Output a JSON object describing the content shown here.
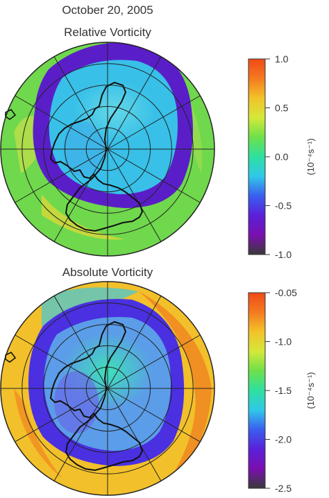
{
  "date": "October 20, 2005",
  "panels": [
    {
      "title": "Relative Vorticity",
      "colorbar": {
        "ticks": [
          "1.0",
          "0.5",
          "0.0",
          "-0.5",
          "-1.0"
        ],
        "range": [
          -1.0,
          1.0
        ],
        "unit": "(10⁻⁴s⁻¹)"
      },
      "palette": [
        "#3a3a3a",
        "#7a0fb0",
        "#5a20d8",
        "#3a5ef0",
        "#30c8e8",
        "#2ee0a0",
        "#6ee04a",
        "#d4e83a",
        "#f3c22a",
        "#f57a20",
        "#f04a18"
      ],
      "map_colors": {
        "background": "#6fd84c",
        "vortex_edge": "#5a1ec8",
        "vortex_inner": "#38c0e8",
        "vortex_core": "#64d8e8"
      }
    },
    {
      "title": "Absolute Vorticity",
      "colorbar": {
        "ticks": [
          "-0.05",
          "-1.0",
          "-1.5",
          "-2.0",
          "-2.5"
        ],
        "range": [
          -2.5,
          -0.05
        ],
        "unit": "(10⁻⁴s⁻¹)"
      },
      "palette": [
        "#3a3a3a",
        "#7a0fb0",
        "#5a20d8",
        "#3a5ef0",
        "#30c8e8",
        "#2ee0a0",
        "#6ee04a",
        "#d4e83a",
        "#f3c22a",
        "#f57a20",
        "#f04a18"
      ],
      "map_colors": {
        "background": "#f2c02a",
        "vortex_edge": "#4a30e0",
        "vortex_inner": "#5b9de8",
        "vortex_core": "#3ee0b8"
      }
    }
  ],
  "map": {
    "meridians_deg": [
      0,
      30,
      60,
      90,
      120,
      150,
      180,
      210,
      240,
      270,
      300,
      330
    ],
    "latitude_circles": 4,
    "coastline_color": "#111111",
    "grid_color": "#222222"
  }
}
